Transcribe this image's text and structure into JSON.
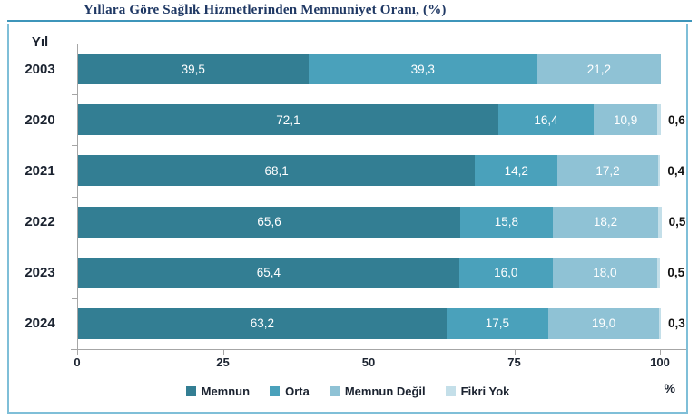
{
  "colors": {
    "title_text": "#1f3864",
    "title_rule": "#3d95ba",
    "frame_border": "#7fbfd8",
    "axis_line": "#a6a6a6",
    "text_dark": "#1b2330",
    "bar_label": "#ffffff",
    "outside_label": "#111111"
  },
  "chart_data": {
    "type": "bar",
    "orientation": "horizontal-stacked",
    "title": "Yıllara Göre Sağlık Hizmetlerinden Memnuniyet Oranı, (%)",
    "category_axis_title": "Yıl",
    "unit_label": "%",
    "categories": [
      "2003",
      "2020",
      "2021",
      "2022",
      "2023",
      "2024"
    ],
    "series": [
      {
        "name": "Memnun",
        "color": "#337e93",
        "label_position": "inside",
        "values": [
          39.5,
          72.1,
          68.1,
          65.6,
          65.4,
          63.2
        ]
      },
      {
        "name": "Orta",
        "color": "#4aa1bb",
        "label_position": "inside",
        "values": [
          39.3,
          16.4,
          14.2,
          15.8,
          16.0,
          17.5
        ]
      },
      {
        "name": "Memnun Değil",
        "color": "#8fc2d5",
        "label_position": "inside",
        "values": [
          21.2,
          10.9,
          17.2,
          18.2,
          18.0,
          19.0
        ]
      },
      {
        "name": "Fikri Yok",
        "color": "#c4dfe9",
        "label_position": "outside",
        "values": [
          null,
          0.6,
          0.4,
          0.5,
          0.5,
          0.3
        ]
      }
    ],
    "xlim": [
      0,
      100
    ],
    "x_ticks": [
      0,
      25,
      50,
      75,
      100
    ],
    "grid": false,
    "legend_position": "bottom"
  }
}
